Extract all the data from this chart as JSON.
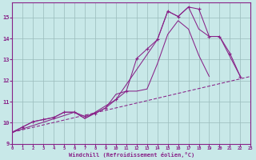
{
  "bg_color": "#c8e8e8",
  "line_color": "#882288",
  "grid_color": "#99bbbb",
  "xlim": [
    0,
    23
  ],
  "ylim": [
    9.0,
    15.7
  ],
  "yticks": [
    9,
    10,
    11,
    12,
    13,
    14,
    15
  ],
  "xticks": [
    0,
    1,
    2,
    3,
    4,
    5,
    6,
    7,
    8,
    9,
    10,
    11,
    12,
    13,
    14,
    15,
    16,
    17,
    18,
    19,
    20,
    21,
    22,
    23
  ],
  "xlabel": "Windchill (Refroidissement éolien,°C)",
  "curve1_x": [
    0,
    1,
    2,
    3,
    4,
    5,
    6,
    7,
    8,
    9,
    10,
    11,
    12,
    13,
    14,
    15,
    16,
    17,
    18,
    19,
    20,
    21,
    22
  ],
  "curve1_y": [
    9.55,
    9.8,
    10.05,
    10.15,
    10.25,
    10.5,
    10.5,
    10.3,
    10.45,
    10.7,
    11.1,
    11.5,
    13.05,
    13.5,
    13.95,
    15.3,
    15.05,
    15.5,
    15.4,
    14.1,
    14.1,
    13.3,
    12.2
  ],
  "curve2_x": [
    0,
    1,
    2,
    3,
    4,
    5,
    6,
    7,
    8,
    9,
    10,
    11,
    12,
    13,
    14,
    15,
    16,
    17,
    18,
    19,
    20,
    21,
    22
  ],
  "curve2_y": [
    9.55,
    9.8,
    10.05,
    10.15,
    10.25,
    10.5,
    10.5,
    10.2,
    10.45,
    10.7,
    11.35,
    11.5,
    11.5,
    11.6,
    12.8,
    14.2,
    14.85,
    14.45,
    13.2,
    12.2,
    null,
    null,
    null
  ],
  "curve3_x": [
    0,
    6,
    7,
    10,
    14,
    15,
    16,
    17,
    18,
    19,
    20,
    22
  ],
  "curve3_y": [
    9.55,
    10.5,
    10.2,
    11.1,
    13.95,
    15.3,
    15.05,
    15.5,
    14.45,
    14.1,
    14.1,
    12.2
  ],
  "curve4_x": [
    0,
    23
  ],
  "curve4_y": [
    9.55,
    12.2
  ]
}
